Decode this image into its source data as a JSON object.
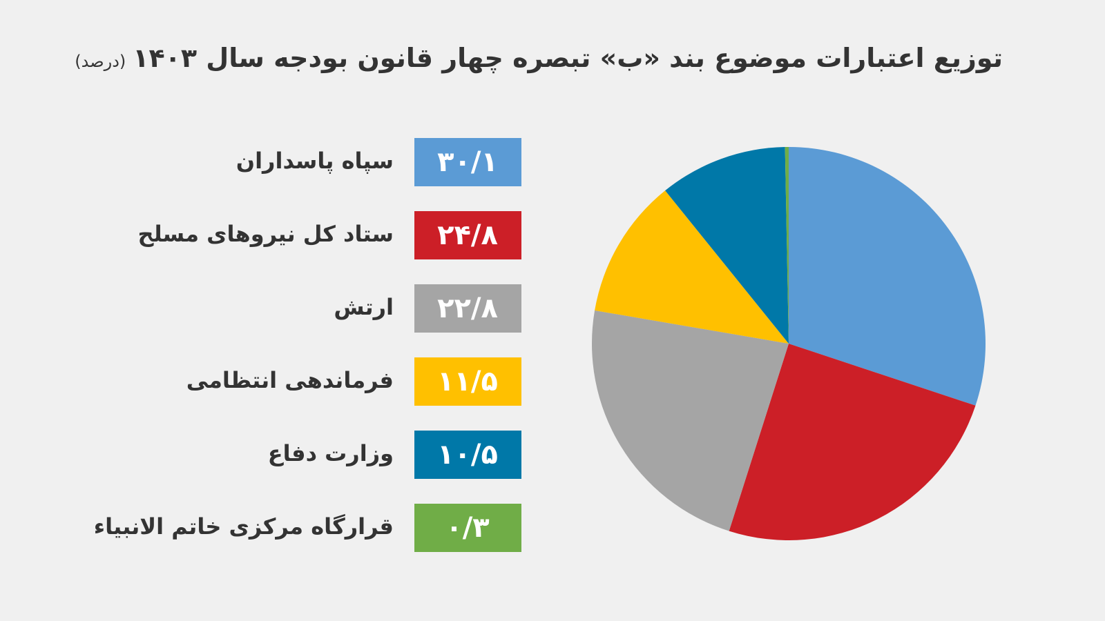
{
  "chart_data": {
    "type": "pie",
    "title": "توزیع اعتبارات موضوع بند «ب» تبصره چهار قانون بودجه سال ۱۴۰۳",
    "subtitle": "(درصد)",
    "categories": [
      "سپاه پاسداران",
      "ستاد کل نیروهای مسلح",
      "ارتش",
      "فرماندهی انتظامی",
      "وزارت دفاع",
      "قرارگاه مرکزی خاتم الانبیاء"
    ],
    "values": [
      30.1,
      24.8,
      22.8,
      11.5,
      10.5,
      0.3
    ],
    "value_labels": [
      "۳۰/۱",
      "۲۴/۸",
      "۲۲/۸",
      "۱۱/۵",
      "۱۰/۵",
      "۰/۳"
    ],
    "colors": [
      "#5b9bd5",
      "#cc1f27",
      "#a5a5a5",
      "#ffc000",
      "#0078a8",
      "#70ad47"
    ]
  }
}
